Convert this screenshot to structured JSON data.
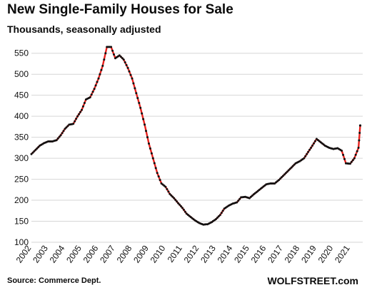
{
  "title": "New Single-Family Houses for Sale",
  "subtitle": "Thousands, seasonally adjusted",
  "source": "Source: Commerce Dept.",
  "brand": "WOLFSTREET.com",
  "chart_data": {
    "type": "line",
    "title": "New Single-Family Houses for Sale",
    "subtitle": "Thousands, seasonally adjusted",
    "xlabel": "",
    "ylabel": "",
    "ylim": [
      100,
      575
    ],
    "yticks": [
      100,
      150,
      200,
      250,
      300,
      350,
      400,
      450,
      500,
      550
    ],
    "xlim": [
      2002.0,
      2021.75
    ],
    "xticks": [
      "2002",
      "2003",
      "2004",
      "2005",
      "2006",
      "2007",
      "2008",
      "2009",
      "2010",
      "2011",
      "2012",
      "2013",
      "2014",
      "2015",
      "2016",
      "2017",
      "2018",
      "2019",
      "2020",
      "2021"
    ],
    "grid": "horizontal",
    "legend": "none",
    "line_color": "#e8201c",
    "marker_color": "#111111",
    "series": [
      {
        "x": [
          2002.0,
          2002.25,
          2002.5,
          2002.75,
          2003.0,
          2003.25,
          2003.5,
          2003.75,
          2004.0,
          2004.25,
          2004.5,
          2004.75,
          2005.0,
          2005.25,
          2005.5,
          2005.75,
          2006.0,
          2006.25,
          2006.5,
          2006.75,
          2007.0,
          2007.25,
          2007.5,
          2007.75,
          2008.0,
          2008.25,
          2008.5,
          2008.75,
          2009.0,
          2009.25,
          2009.5,
          2009.75,
          2010.0,
          2010.25,
          2010.5,
          2010.75,
          2011.0,
          2011.25,
          2011.5,
          2011.75,
          2012.0,
          2012.25,
          2012.5,
          2012.75,
          2013.0,
          2013.25,
          2013.5,
          2013.75,
          2014.0,
          2014.25,
          2014.5,
          2014.75,
          2015.0,
          2015.25,
          2015.5,
          2015.75,
          2016.0,
          2016.25,
          2016.5,
          2016.75,
          2017.0,
          2017.25,
          2017.5,
          2017.75,
          2018.0,
          2018.25,
          2018.5,
          2018.75,
          2019.0,
          2019.25,
          2019.5,
          2019.75,
          2020.0,
          2020.25,
          2020.5,
          2020.75,
          2021.0,
          2021.25,
          2021.5,
          2021.6
        ],
        "y": [
          310,
          320,
          330,
          336,
          340,
          340,
          343,
          355,
          370,
          380,
          382,
          400,
          415,
          440,
          445,
          465,
          490,
          520,
          565,
          565,
          538,
          545,
          535,
          515,
          490,
          455,
          420,
          380,
          335,
          300,
          265,
          240,
          232,
          215,
          205,
          193,
          182,
          168,
          160,
          152,
          146,
          142,
          143,
          148,
          155,
          165,
          180,
          187,
          192,
          195,
          207,
          208,
          205,
          214,
          222,
          230,
          238,
          240,
          240,
          248,
          258,
          268,
          278,
          288,
          293,
          300,
          315,
          330,
          346,
          338,
          330,
          325,
          322,
          324,
          318,
          288,
          287,
          300,
          325,
          378
        ]
      }
    ]
  }
}
